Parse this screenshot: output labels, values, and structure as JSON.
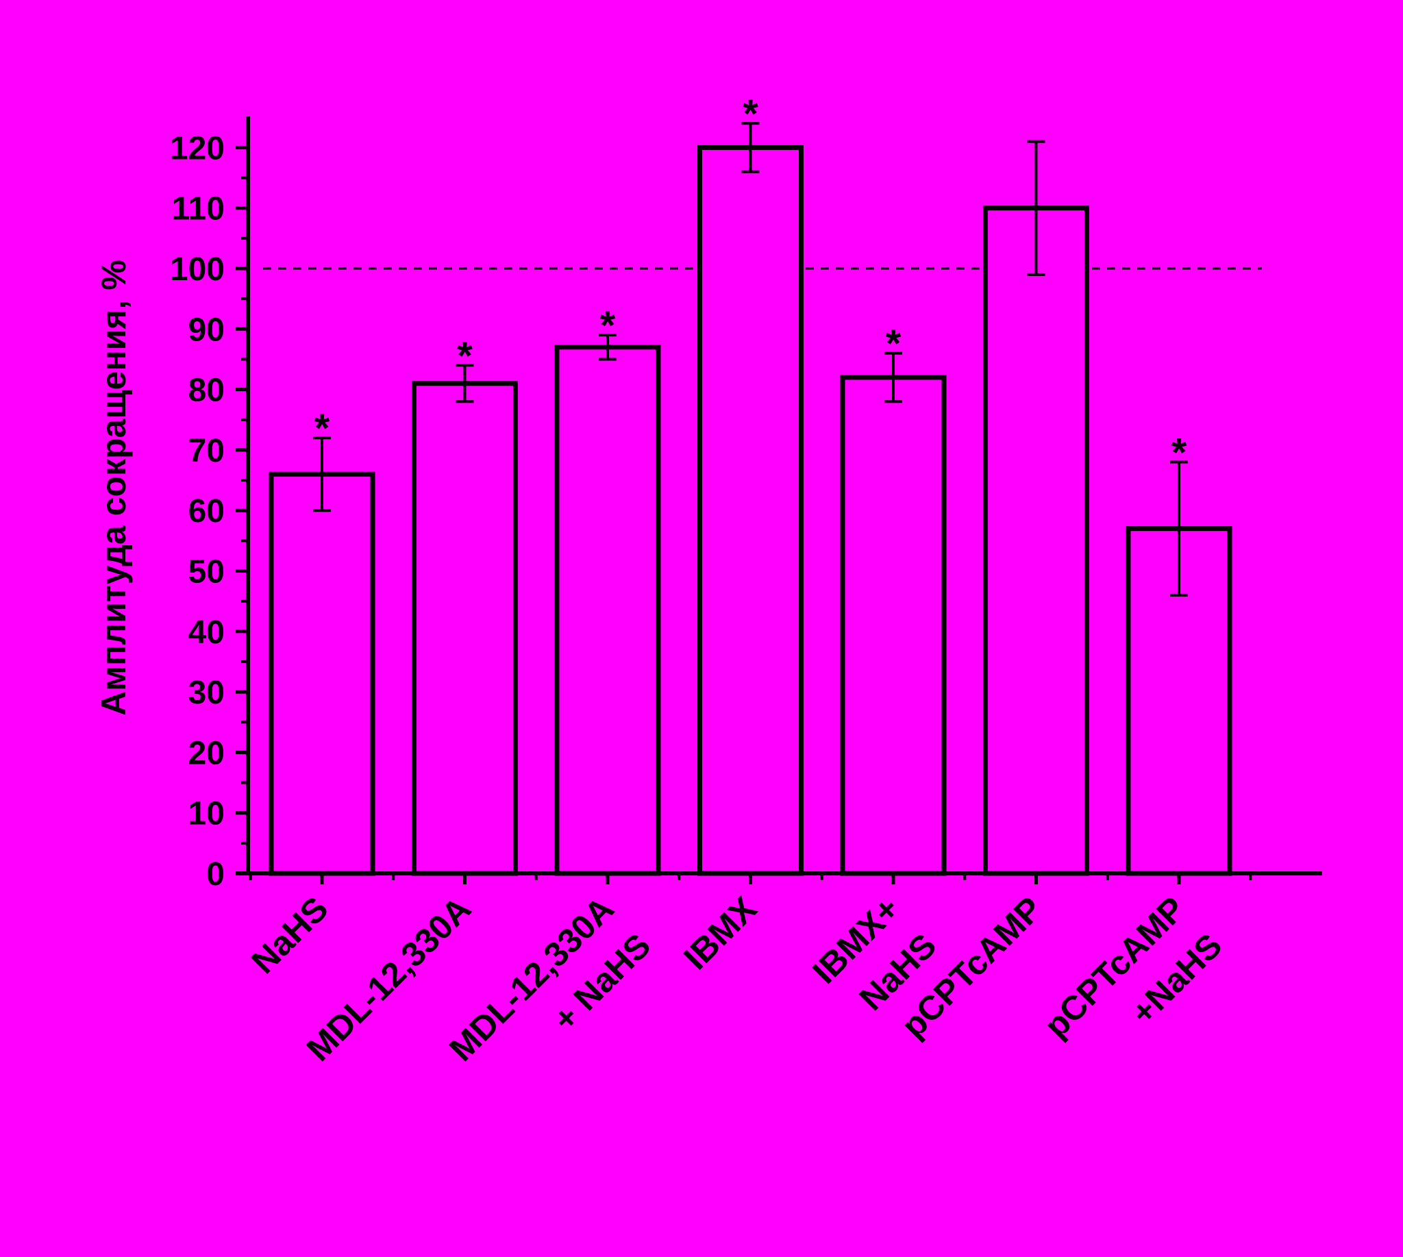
{
  "chart_data": {
    "type": "bar",
    "title": "",
    "xlabel": "",
    "ylabel": "Амплитуда сокращения, %",
    "ylim": [
      0,
      125
    ],
    "yticks": [
      "0",
      "10",
      "20",
      "30",
      "40",
      "50",
      "60",
      "70",
      "80",
      "90",
      "100",
      "110",
      "120"
    ],
    "categories": [
      [
        "NaHS"
      ],
      [
        "MDL-12,330A"
      ],
      [
        "MDL-12,330A",
        "+ NaHS"
      ],
      [
        "IBMX"
      ],
      [
        "IBMX+",
        "NaHS"
      ],
      [
        "pCPTcAMP"
      ],
      [
        "pCPTcAMP",
        "+NaHS"
      ]
    ],
    "values": [
      66,
      81,
      87,
      120,
      82,
      110,
      57
    ],
    "errors": [
      6,
      3,
      2,
      4,
      4,
      11,
      11
    ],
    "significance": [
      "*",
      "*",
      "*",
      "*",
      "*",
      "",
      "*"
    ],
    "reference_line": 100,
    "colors": {
      "background": "#ff00ff",
      "bar_fill": "#ff00ff",
      "bar_stroke": "#000000"
    }
  }
}
